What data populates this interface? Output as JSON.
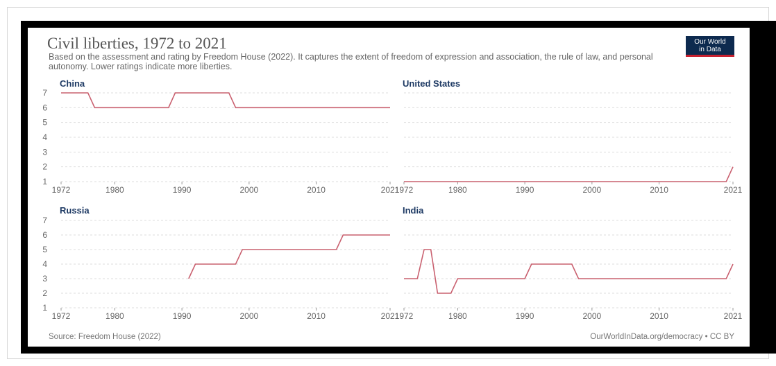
{
  "header": {
    "title": "Civil liberties, 1972 to 2021",
    "subtitle": "Based on the assessment and rating by Freedom House (2022). It captures the extent of freedom of expression and association, the rule of law, and personal autonomy. Lower ratings indicate more liberties."
  },
  "logo": {
    "line1": "Our World",
    "line2": "in Data",
    "bg_color": "#0d2a4f",
    "accent_color": "#c8202f"
  },
  "footer": {
    "source": "Source: Freedom House (2022)",
    "credit": "OurWorldInData.org/democracy • CC BY"
  },
  "chart_data": [
    {
      "type": "line",
      "title": "China",
      "xlim": [
        1972,
        2021
      ],
      "ylim": [
        1,
        7
      ],
      "xticks": [
        "1972",
        "1980",
        "1990",
        "2000",
        "2010",
        "2021"
      ],
      "yticks": [
        "1",
        "2",
        "3",
        "4",
        "5",
        "6",
        "7"
      ],
      "grid": true,
      "line_color": "#c9606f",
      "points": [
        [
          1972,
          7
        ],
        [
          1976,
          7
        ],
        [
          1977,
          6
        ],
        [
          1988,
          6
        ],
        [
          1989,
          7
        ],
        [
          1997,
          7
        ],
        [
          1998,
          6
        ],
        [
          2021,
          6
        ]
      ]
    },
    {
      "type": "line",
      "title": "United States",
      "xlim": [
        1972,
        2021
      ],
      "ylim": [
        1,
        7
      ],
      "xticks": [
        "1972",
        "1980",
        "1990",
        "2000",
        "2010",
        "2021"
      ],
      "yticks": [],
      "grid": true,
      "line_color": "#c9606f",
      "points": [
        [
          1972,
          1
        ],
        [
          2020,
          1
        ],
        [
          2021,
          2
        ]
      ]
    },
    {
      "type": "line",
      "title": "Russia",
      "xlim": [
        1972,
        2021
      ],
      "ylim": [
        1,
        7
      ],
      "xticks": [
        "1972",
        "1980",
        "1990",
        "2000",
        "2010",
        "2021"
      ],
      "yticks": [
        "1",
        "2",
        "3",
        "4",
        "5",
        "6",
        "7"
      ],
      "grid": true,
      "line_color": "#c9606f",
      "points": [
        [
          1991,
          3
        ],
        [
          1992,
          4
        ],
        [
          1998,
          4
        ],
        [
          1999,
          5
        ],
        [
          2013,
          5
        ],
        [
          2014,
          6
        ],
        [
          2021,
          6
        ]
      ]
    },
    {
      "type": "line",
      "title": "India",
      "xlim": [
        1972,
        2021
      ],
      "ylim": [
        1,
        7
      ],
      "xticks": [
        "1972",
        "1980",
        "1990",
        "2000",
        "2010",
        "2021"
      ],
      "yticks": [],
      "grid": true,
      "line_color": "#c9606f",
      "points": [
        [
          1972,
          3
        ],
        [
          1974,
          3
        ],
        [
          1975,
          5
        ],
        [
          1976,
          5
        ],
        [
          1977,
          2
        ],
        [
          1979,
          2
        ],
        [
          1980,
          3
        ],
        [
          1990,
          3
        ],
        [
          1991,
          4
        ],
        [
          1997,
          4
        ],
        [
          1998,
          3
        ],
        [
          2020,
          3
        ],
        [
          2021,
          4
        ]
      ]
    }
  ]
}
